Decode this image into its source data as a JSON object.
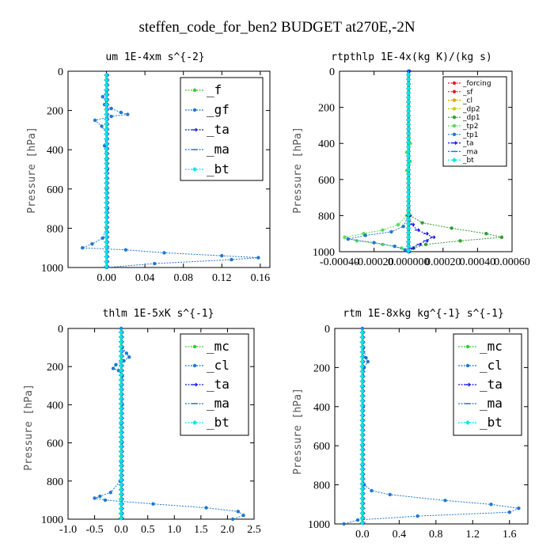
{
  "title": "steffen_code_for_ben2  BUDGET at270E,-2N",
  "chart_data": [
    {
      "type": "line",
      "title": "um  1E-4xm s^{-2}",
      "ylabel": "Pressure [hPa]",
      "ylim": [
        1000,
        0
      ],
      "yticks": [
        0,
        200,
        400,
        600,
        800,
        1000
      ],
      "xlim": [
        -0.04,
        0.17
      ],
      "xticks": [
        0,
        0.04,
        0.08,
        0.12,
        0.16
      ],
      "xticklabels": [
        "0.00",
        "0.04",
        "0.08",
        "0.12",
        "0.16"
      ],
      "legend_position": "top-right",
      "series": [
        {
          "name": "_f",
          "color": "#33cc33",
          "marker": "circle",
          "p": [
            10,
            1000
          ],
          "x": [
            0,
            0
          ]
        },
        {
          "name": "_gf",
          "color": "#1f78d1",
          "marker": "circle",
          "p": [
            100,
            130,
            150,
            170,
            190,
            210,
            220,
            230,
            250,
            280,
            320,
            380,
            450,
            500,
            600,
            700,
            800,
            850,
            880,
            900,
            910,
            925,
            940,
            950,
            960,
            980,
            1000
          ],
          "x": [
            0.0,
            -0.004,
            0.0,
            -0.002,
            0.005,
            0.015,
            0.022,
            0.005,
            -0.012,
            -0.005,
            0.0,
            -0.002,
            0.0,
            0.001,
            0.0,
            0.001,
            0.0,
            -0.004,
            -0.015,
            -0.025,
            0.02,
            0.06,
            0.12,
            0.158,
            0.13,
            0.05,
            0.0
          ]
        },
        {
          "name": "_ta",
          "color": "#1010ee",
          "marker": "arrow",
          "p": [
            10,
            1000
          ],
          "x": [
            0,
            0
          ]
        },
        {
          "name": "_ma",
          "color": "#1f78d1",
          "marker": "dash",
          "p": [
            10,
            1000
          ],
          "x": [
            0,
            0
          ]
        },
        {
          "name": "_bt",
          "color": "#00e5e5",
          "marker": "diamond",
          "p": [
            10,
            1000
          ],
          "x": [
            0,
            0
          ]
        }
      ]
    },
    {
      "type": "line",
      "title": "rtpthlp  1E-4x(kg K)/(kg s)",
      "ylabel": "Pressure [hPa]",
      "ylim": [
        1000,
        0
      ],
      "yticks": [
        0,
        200,
        400,
        600,
        800,
        1000
      ],
      "xlim": [
        -0.0004,
        0.0006
      ],
      "xticks": [
        -0.0004,
        -0.0002,
        0,
        0.0002,
        0.0004,
        0.0006
      ],
      "xticklabels": [
        "-0.00040",
        "-0.00020",
        "0.000000",
        "0.00020",
        "0.00040",
        "0.00060"
      ],
      "legend_position": "top-right",
      "series": [
        {
          "name": "_forcing",
          "color": "#dd2222",
          "marker": "circle",
          "p": [
            0,
            1000
          ],
          "x": [
            0,
            0
          ]
        },
        {
          "name": "_sf",
          "color": "#dd2222",
          "marker": "circle",
          "p": [
            0,
            1000
          ],
          "x": [
            0,
            0
          ]
        },
        {
          "name": "_cl",
          "color": "#e8a000",
          "marker": "circle",
          "p": [
            0,
            1000
          ],
          "x": [
            0,
            0
          ]
        },
        {
          "name": "_dp2",
          "color": "#cccc00",
          "marker": "circle",
          "p": [
            0,
            1000
          ],
          "x": [
            0,
            0
          ]
        },
        {
          "name": "_dp1",
          "color": "#2ea02e",
          "marker": "circle",
          "p": [
            0,
            400,
            600,
            800,
            840,
            870,
            900,
            920,
            940,
            960,
            980,
            1000
          ],
          "x": [
            0,
            0,
            0,
            1e-05,
            8e-05,
            0.00025,
            0.00045,
            0.00054,
            0.0003,
            0.0001,
            3e-05,
            0
          ]
        },
        {
          "name": "_tp2",
          "color": "#55dd55",
          "marker": "circle",
          "p": [
            0,
            400,
            450,
            500,
            550,
            600,
            800,
            850,
            880,
            900,
            920,
            940,
            960,
            980,
            1000
          ],
          "x": [
            0,
            1e-05,
            -1e-05,
            1e-05,
            -1e-05,
            0,
            -1e-05,
            -6e-05,
            -0.00015,
            -0.00026,
            -0.00037,
            -0.0003,
            -0.00015,
            -4e-05,
            0
          ]
        },
        {
          "name": "_tp1",
          "color": "#1f78d1",
          "marker": "circle",
          "p": [
            0,
            800,
            860,
            890,
            910,
            930,
            950,
            970,
            990,
            1000
          ],
          "x": [
            0,
            0,
            -3e-05,
            -0.0001,
            -0.00025,
            -0.00035,
            -0.0002,
            -8e-05,
            -2e-05,
            0
          ]
        },
        {
          "name": "_ta",
          "color": "#1010ee",
          "marker": "arrow",
          "p": [
            0,
            800,
            850,
            880,
            900,
            920,
            940,
            960,
            980,
            1000
          ],
          "x": [
            0,
            0,
            2e-05,
            5e-05,
            0.0001,
            0.00014,
            0.0001,
            6e-05,
            2e-05,
            0
          ]
        },
        {
          "name": "_ma",
          "color": "#1f78d1",
          "marker": "dash",
          "p": [
            0,
            1000
          ],
          "x": [
            0,
            0
          ]
        },
        {
          "name": "_bt",
          "color": "#00e5e5",
          "marker": "diamond",
          "p": [
            0,
            1000
          ],
          "x": [
            0,
            0
          ]
        }
      ]
    },
    {
      "type": "line",
      "title": "thlm  1E-5xK s^{-1}",
      "ylabel": "Pressure [hPa]",
      "ylim": [
        1000,
        0
      ],
      "yticks": [
        0,
        200,
        400,
        600,
        800,
        1000
      ],
      "xlim": [
        -1.0,
        2.5
      ],
      "xticks": [
        -1.0,
        -0.5,
        0,
        0.5,
        1.0,
        1.5,
        2.0,
        2.5
      ],
      "xticklabels": [
        "-1.0",
        "-0.5",
        "0.0",
        "0.5",
        "1.0",
        "1.5",
        "2.0",
        "2.5"
      ],
      "legend_position": "top-right",
      "series": [
        {
          "name": "_mc",
          "color": "#33cc33",
          "marker": "circle",
          "p": [
            0,
            1000
          ],
          "x": [
            0,
            0
          ]
        },
        {
          "name": "_cl",
          "color": "#1f78d1",
          "marker": "circle",
          "p": [
            0,
            100,
            130,
            150,
            170,
            190,
            210,
            220,
            250,
            300,
            400,
            500,
            600,
            700,
            800,
            860,
            880,
            890,
            900,
            920,
            940,
            960,
            980,
            1000
          ],
          "x": [
            0,
            0.02,
            0.1,
            0.15,
            0.05,
            -0.1,
            -0.15,
            -0.05,
            0.02,
            0,
            0.02,
            0,
            0.01,
            0,
            -0.02,
            -0.2,
            -0.4,
            -0.5,
            -0.3,
            0.6,
            1.6,
            2.2,
            2.3,
            2.1
          ]
        },
        {
          "name": "_ta",
          "color": "#1010ee",
          "marker": "arrow",
          "p": [
            0,
            1000
          ],
          "x": [
            0,
            0
          ]
        },
        {
          "name": "_ma",
          "color": "#1f78d1",
          "marker": "dash",
          "p": [
            0,
            1000
          ],
          "x": [
            0,
            0
          ]
        },
        {
          "name": "_bt",
          "color": "#00e5e5",
          "marker": "diamond",
          "p": [
            0,
            1000
          ],
          "x": [
            0,
            0
          ]
        }
      ]
    },
    {
      "type": "line",
      "title": "rtm  1E-8xkg kg^{-1} s^{-1}",
      "ylabel": "Pressure [hPa]",
      "ylim": [
        1000,
        0
      ],
      "yticks": [
        0,
        200,
        400,
        600,
        800,
        1000
      ],
      "xlim": [
        -0.3,
        1.8
      ],
      "xticks": [
        0,
        0.4,
        0.8,
        1.2,
        1.6
      ],
      "xticklabels": [
        "0.0",
        "0.4",
        "0.8",
        "1.2",
        "1.6"
      ],
      "legend_position": "top-right",
      "series": [
        {
          "name": "_mc",
          "color": "#33cc33",
          "marker": "circle",
          "p": [
            0,
            1000
          ],
          "x": [
            0,
            0
          ]
        },
        {
          "name": "_cl",
          "color": "#1f78d1",
          "marker": "circle",
          "p": [
            0,
            100,
            150,
            170,
            200,
            300,
            400,
            500,
            600,
            700,
            800,
            830,
            850,
            880,
            900,
            920,
            940,
            960,
            980,
            1000
          ],
          "x": [
            0,
            0.01,
            0.04,
            0.06,
            0.02,
            0,
            0.01,
            0,
            0,
            0,
            0.02,
            0.1,
            0.3,
            0.9,
            1.4,
            1.7,
            1.6,
            0.6,
            -0.05,
            -0.2
          ]
        },
        {
          "name": "_ta",
          "color": "#1010ee",
          "marker": "arrow",
          "p": [
            0,
            1000
          ],
          "x": [
            0,
            0
          ]
        },
        {
          "name": "_ma",
          "color": "#1f78d1",
          "marker": "dash",
          "p": [
            0,
            1000
          ],
          "x": [
            0,
            0
          ]
        },
        {
          "name": "_bt",
          "color": "#00e5e5",
          "marker": "diamond",
          "p": [
            0,
            1000
          ],
          "x": [
            0,
            0
          ]
        }
      ]
    }
  ]
}
